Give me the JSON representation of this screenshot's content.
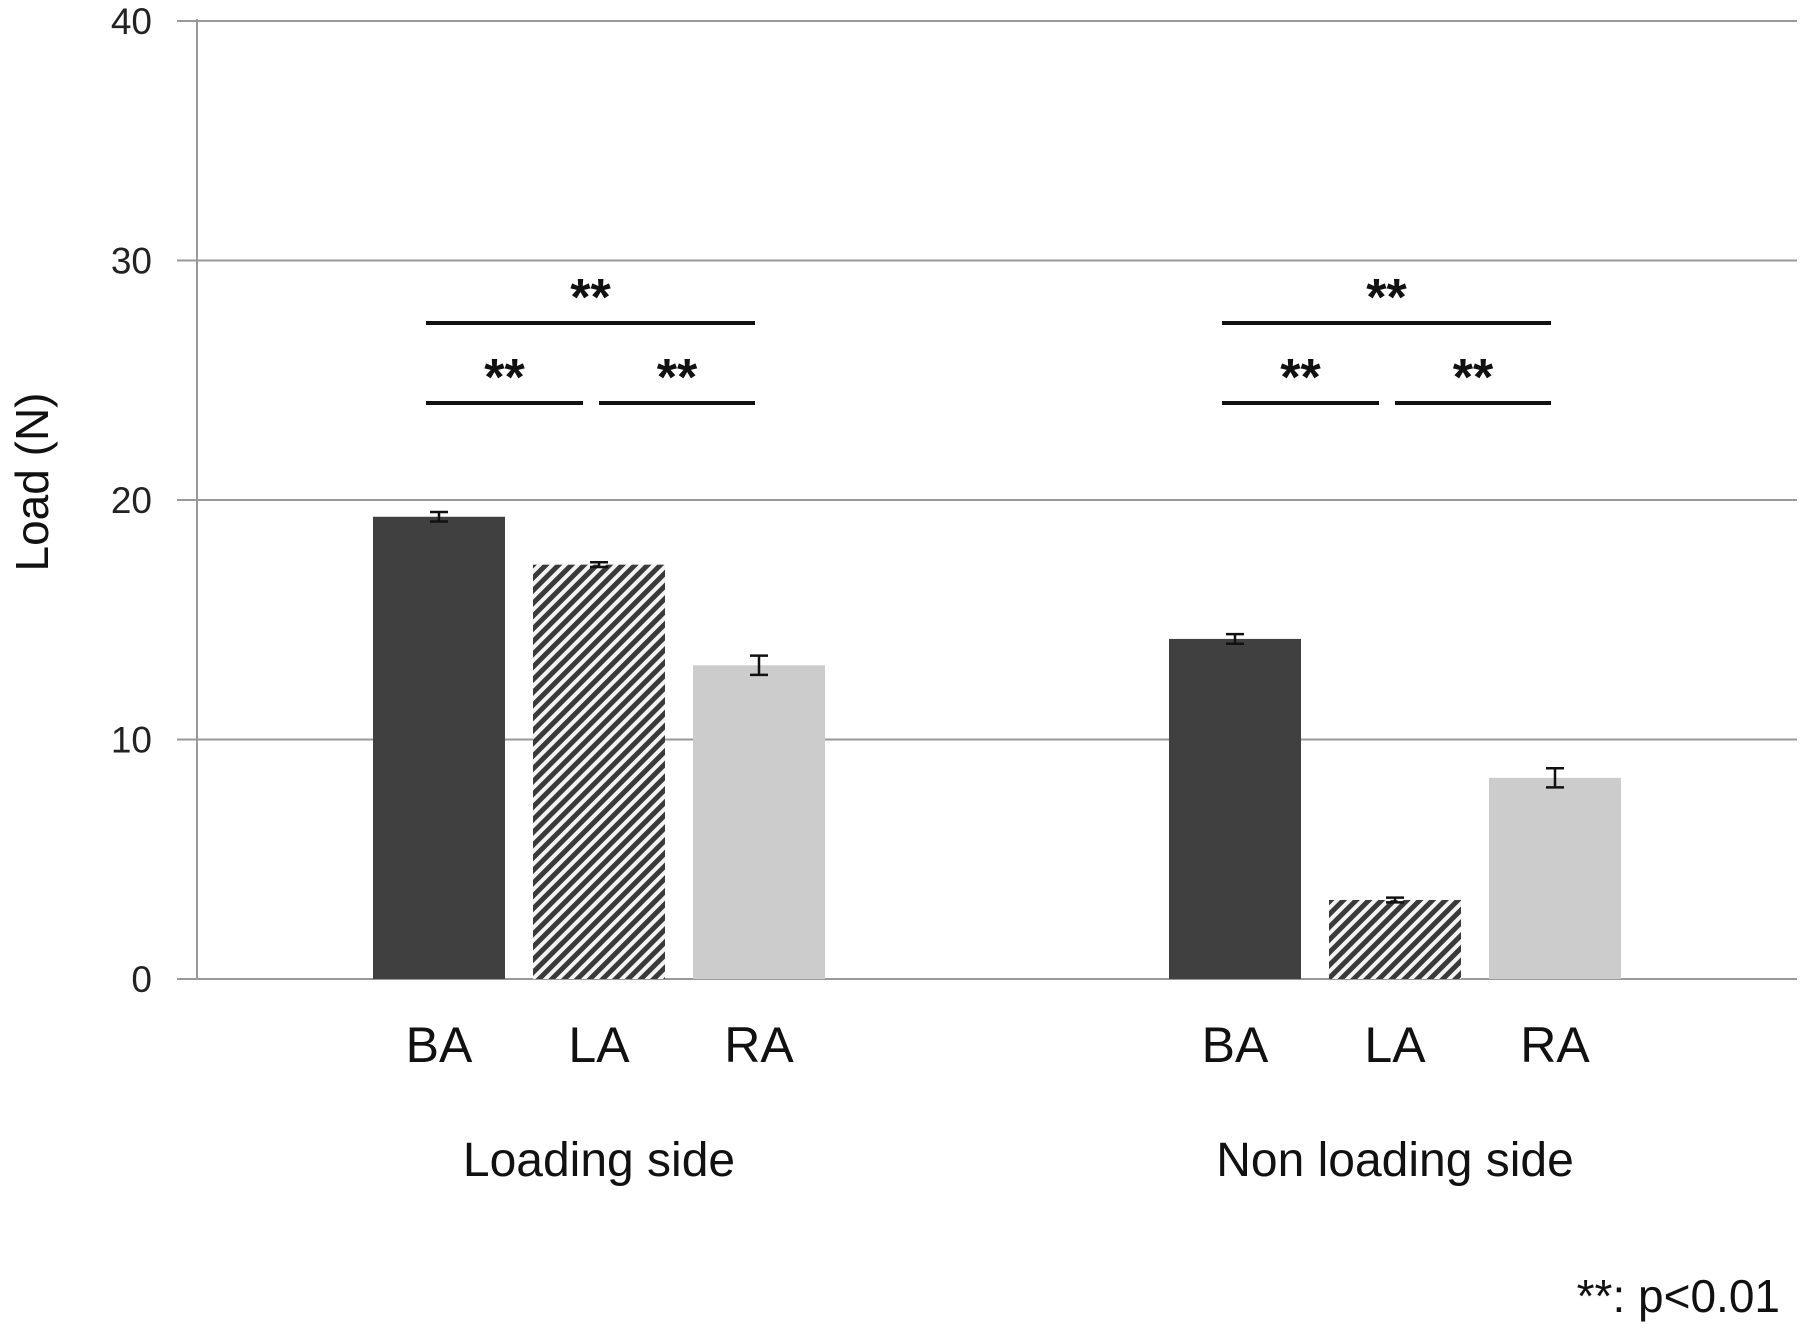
{
  "chart_data": {
    "type": "bar",
    "title": "",
    "xlabel": "",
    "ylabel": "Load (N)",
    "ylim": [
      0,
      40
    ],
    "yticks": [
      "0",
      "10",
      "20",
      "30",
      "40"
    ],
    "grid": true,
    "groups": [
      "Loading side",
      "Non loading side"
    ],
    "categories": [
      "BA",
      "LA",
      "RA"
    ],
    "series": [
      {
        "name": "Loading side",
        "values": [
          19.3,
          17.3,
          13.1
        ],
        "errors": [
          0.2,
          0.1,
          0.4
        ]
      },
      {
        "name": "Non loading side",
        "values": [
          14.2,
          3.3,
          8.4
        ],
        "errors": [
          0.2,
          0.1,
          0.4
        ]
      }
    ],
    "bar_styles": [
      {
        "category": "BA",
        "fill": "#404040",
        "pattern": "solid"
      },
      {
        "category": "LA",
        "fill": "#555555",
        "pattern": "diagonal-hatch"
      },
      {
        "category": "RA",
        "fill": "#cccccc",
        "pattern": "solid"
      }
    ],
    "significance": [
      {
        "group": 0,
        "from": "BA",
        "to": "RA",
        "label": "**"
      },
      {
        "group": 0,
        "from": "BA",
        "to": "LA",
        "label": "**"
      },
      {
        "group": 0,
        "from": "LA",
        "to": "RA",
        "label": "**"
      },
      {
        "group": 1,
        "from": "BA",
        "to": "RA",
        "label": "**"
      },
      {
        "group": 1,
        "from": "BA",
        "to": "LA",
        "label": "**"
      },
      {
        "group": 1,
        "from": "LA",
        "to": "RA",
        "label": "**"
      }
    ],
    "footnote": "**: p<0.01"
  }
}
